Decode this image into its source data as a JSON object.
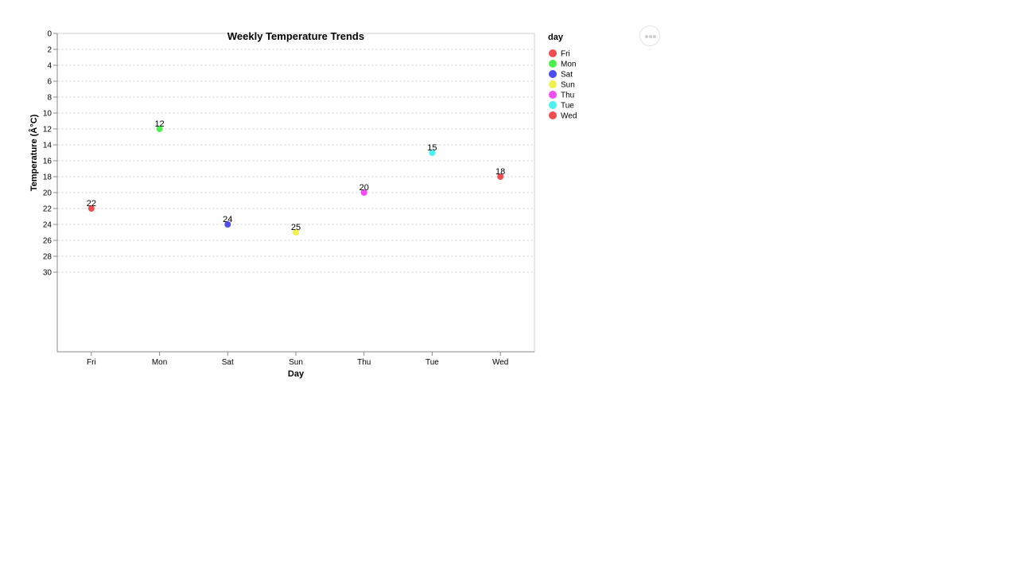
{
  "chart_data": {
    "type": "scatter",
    "title": "Weekly Temperature Trends",
    "xlabel": "Day",
    "ylabel": "Temperature (Â°C)",
    "categories": [
      "Fri",
      "Mon",
      "Sat",
      "Sun",
      "Thu",
      "Tue",
      "Wed"
    ],
    "values": [
      22,
      12,
      24,
      25,
      20,
      15,
      18
    ],
    "y_ticks": [
      "0",
      "2",
      "4",
      "6",
      "8",
      "10",
      "12",
      "14",
      "16",
      "18",
      "20",
      "22",
      "24",
      "26",
      "28",
      "30"
    ],
    "ylim": [
      0,
      40
    ],
    "y_reversed": true,
    "grid": true,
    "legend": {
      "title": "day",
      "placement": "right",
      "items": [
        "Fri",
        "Mon",
        "Sat",
        "Sun",
        "Thu",
        "Tue",
        "Wed"
      ]
    },
    "colors": {
      "Fri": "#f04e4e",
      "Mon": "#4ef04e",
      "Sat": "#4e4ef0",
      "Sun": "#f0f04e",
      "Thu": "#f04ef0",
      "Tue": "#4ef0f0",
      "Wed": "#f04e4e"
    }
  },
  "menu": {
    "icon": "more-horizontal-icon"
  }
}
